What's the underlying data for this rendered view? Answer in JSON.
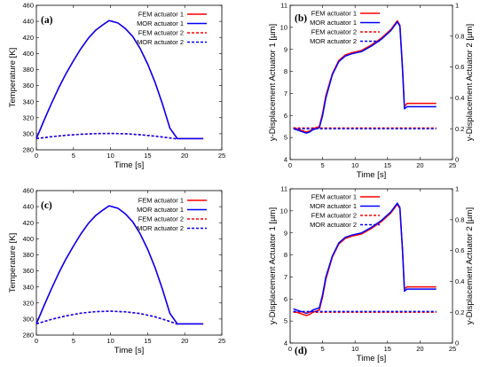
{
  "chart_data": [
    {
      "panel_label": "(a)",
      "type": "line",
      "xlabel": "Time [s]",
      "ylabel": "Temperature [K]",
      "xlim": [
        0,
        25
      ],
      "ylim": [
        280,
        460
      ],
      "xticks": [
        "0",
        "5",
        "10",
        "15",
        "20",
        "25"
      ],
      "yticks": [
        "280",
        "300",
        "320",
        "340",
        "360",
        "380",
        "400",
        "420",
        "440",
        "460"
      ],
      "legend_position": "top-right",
      "series": [
        {
          "name": "FEM actuator 1",
          "color": "#ff0000",
          "dash": "solid",
          "axis": "left",
          "x": [
            0,
            1,
            2,
            3,
            4,
            5,
            6,
            7,
            8,
            9,
            9.8,
            11,
            12,
            13,
            14,
            15,
            16,
            17,
            18,
            19,
            20,
            21,
            22.5
          ],
          "y": [
            294,
            316,
            337,
            357,
            375,
            391,
            406,
            419,
            429,
            436,
            441,
            438,
            431,
            421,
            406,
            387,
            364,
            337,
            307,
            294,
            294,
            294,
            294
          ]
        },
        {
          "name": "MOR actuator 1",
          "color": "#0000ff",
          "dash": "solid",
          "axis": "left",
          "x": [
            0,
            1,
            2,
            3,
            4,
            5,
            6,
            7,
            8,
            9,
            9.8,
            11,
            12,
            13,
            14,
            15,
            16,
            17,
            18,
            19,
            20,
            21,
            22.5
          ],
          "y": [
            294,
            316,
            337,
            357,
            375,
            391,
            406,
            419,
            429,
            436,
            441,
            438,
            431,
            421,
            406,
            387,
            364,
            337,
            307,
            294,
            294,
            294,
            294
          ]
        },
        {
          "name": "FEM actuator 2",
          "color": "#ff0000",
          "dash": "dashed",
          "axis": "left",
          "x": [
            0,
            2,
            4,
            6,
            8,
            10,
            12,
            14,
            16,
            18,
            19
          ],
          "y": [
            294,
            296.3,
            298.1,
            299.4,
            300.2,
            300.4,
            300.0,
            298.8,
            297.0,
            294.8,
            293.5
          ]
        },
        {
          "name": "MOR actuator 2",
          "color": "#0000ff",
          "dash": "dashed",
          "axis": "left",
          "x": [
            0,
            2,
            4,
            6,
            8,
            10,
            12,
            14,
            16,
            18,
            19
          ],
          "y": [
            294,
            296.3,
            298.1,
            299.4,
            300.2,
            300.4,
            300.0,
            298.8,
            297.0,
            294.8,
            293.5
          ]
        }
      ]
    },
    {
      "panel_label": "(b)",
      "type": "line",
      "xlabel": "Time [s]",
      "ylabel": "y-Displacement Actuator 1 [µm]",
      "ylabel2": "y-Displacement Actuator 2 [µm]",
      "xlim": [
        0,
        25
      ],
      "ylim": [
        4,
        11
      ],
      "ylim2": [
        0,
        1
      ],
      "xticks": [
        "0",
        "5",
        "10",
        "15",
        "20",
        "25"
      ],
      "yticks": [
        "4",
        "5",
        "6",
        "7",
        "8",
        "9",
        "10",
        "11"
      ],
      "yticks2": [
        "0",
        "0.2",
        "0.4",
        "0.6",
        "0.8",
        "1"
      ],
      "legend_position": "top-center",
      "series": [
        {
          "name": "FEM actuator 1",
          "color": "#ff0000",
          "dash": "solid",
          "axis": "left",
          "x": [
            0.5,
            1.5,
            2.5,
            3,
            3.5,
            4.5,
            5,
            5.5,
            6.5,
            7.5,
            8.5,
            9.5,
            11,
            12.5,
            14,
            15.5,
            16.5,
            16.9,
            17.3,
            17.6,
            18,
            19,
            20,
            22.5
          ],
          "y": [
            5.45,
            5.35,
            5.25,
            5.3,
            5.4,
            5.5,
            6.1,
            6.9,
            7.9,
            8.5,
            8.75,
            8.85,
            8.95,
            9.2,
            9.5,
            9.9,
            10.3,
            10.1,
            8.2,
            6.4,
            6.55,
            6.55,
            6.55,
            6.55
          ]
        },
        {
          "name": "MOR actuator 1",
          "color": "#0000ff",
          "dash": "solid",
          "axis": "left",
          "x": [
            0.5,
            1.5,
            2.5,
            3,
            3.5,
            4.5,
            5,
            5.5,
            6.5,
            7.5,
            8.5,
            9.5,
            11,
            12.5,
            14,
            15.5,
            16.5,
            16.9,
            17.3,
            17.6,
            18,
            19,
            20,
            22.5
          ],
          "y": [
            5.4,
            5.3,
            5.2,
            5.25,
            5.35,
            5.45,
            6.0,
            6.8,
            7.85,
            8.45,
            8.7,
            8.8,
            8.9,
            9.15,
            9.45,
            9.85,
            10.25,
            10.05,
            8.1,
            6.3,
            6.4,
            6.4,
            6.4,
            6.4
          ]
        },
        {
          "name": "FEM actuator 2",
          "color": "#ff0000",
          "dash": "dashed",
          "axis": "right",
          "x": [
            0.5,
            22.5
          ],
          "y": [
            0.205,
            0.205
          ]
        },
        {
          "name": "MOR actuator 2",
          "color": "#0000ff",
          "dash": "dashed",
          "axis": "right",
          "x": [
            0.5,
            22.5
          ],
          "y": [
            0.2,
            0.2
          ]
        }
      ]
    },
    {
      "panel_label": "(c)",
      "type": "line",
      "xlabel": "Time [s]",
      "ylabel": "Temperature [K]",
      "xlim": [
        0,
        25
      ],
      "ylim": [
        280,
        460
      ],
      "xticks": [
        "0",
        "5",
        "10",
        "15",
        "20",
        "25"
      ],
      "yticks": [
        "280",
        "300",
        "320",
        "340",
        "360",
        "380",
        "400",
        "420",
        "440",
        "460"
      ],
      "legend_position": "top-right",
      "series": [
        {
          "name": "FEM actuator 1",
          "color": "#ff0000",
          "dash": "solid",
          "axis": "left",
          "x": [
            0,
            1,
            2,
            3,
            4,
            5,
            6,
            7,
            8,
            9,
            9.8,
            11,
            12,
            13,
            14,
            15,
            16,
            17,
            18,
            19,
            20,
            21,
            22.5
          ],
          "y": [
            294,
            316,
            337,
            357,
            375,
            391,
            406,
            419,
            429,
            436,
            441,
            438,
            431,
            421,
            406,
            387,
            364,
            337,
            307,
            294,
            294,
            294,
            294
          ]
        },
        {
          "name": "MOR actuator 1",
          "color": "#0000ff",
          "dash": "solid",
          "axis": "left",
          "x": [
            0,
            1,
            2,
            3,
            4,
            5,
            6,
            7,
            8,
            9,
            9.8,
            11,
            12,
            13,
            14,
            15,
            16,
            17,
            18,
            19,
            20,
            21,
            22.5
          ],
          "y": [
            294,
            316,
            337,
            357,
            375,
            391,
            406,
            419,
            429,
            436,
            441,
            438,
            431,
            421,
            406,
            387,
            364,
            337,
            307,
            294,
            294,
            294,
            294
          ]
        },
        {
          "name": "FEM actuator 2",
          "color": "#ff0000",
          "dash": "dashed",
          "axis": "left",
          "x": [
            0,
            2,
            4,
            6,
            8,
            10,
            12,
            14,
            16,
            18,
            19
          ],
          "y": [
            294,
            299.5,
            304.0,
            307.3,
            309.2,
            309.8,
            309.0,
            306.8,
            302.8,
            297.0,
            293.5
          ]
        },
        {
          "name": "MOR actuator 2",
          "color": "#0000ff",
          "dash": "dashed",
          "axis": "left",
          "x": [
            0,
            2,
            4,
            6,
            8,
            10,
            12,
            14,
            16,
            18,
            19
          ],
          "y": [
            294,
            299.5,
            304.0,
            307.3,
            309.2,
            309.8,
            309.0,
            306.8,
            302.8,
            297.0,
            293.5
          ]
        }
      ]
    },
    {
      "panel_label": "(d)",
      "type": "line",
      "xlabel": "Time [s]",
      "ylabel": "y-Displacement Actuator 1 [µm]",
      "ylabel2": "y-Displacement Actuator 2 [µm]",
      "xlim": [
        0,
        25
      ],
      "ylim": [
        4,
        11
      ],
      "ylim2": [
        0,
        1
      ],
      "xticks": [
        "0",
        "5",
        "10",
        "15",
        "20",
        "25"
      ],
      "yticks": [
        "4",
        "5",
        "6",
        "7",
        "8",
        "9",
        "10",
        "11"
      ],
      "yticks2": [
        "0",
        "0.2",
        "0.4",
        "0.6",
        "0.8",
        "1"
      ],
      "legend_position": "top-center",
      "series": [
        {
          "name": "FEM actuator 1",
          "color": "#ff0000",
          "dash": "solid",
          "axis": "left",
          "x": [
            0.5,
            1.5,
            2.5,
            3,
            3.5,
            4.5,
            5,
            5.5,
            6.5,
            7.5,
            8.5,
            9.5,
            11,
            12.5,
            14,
            15.5,
            16.5,
            16.9,
            17.3,
            17.6,
            18,
            19,
            20,
            22.5
          ],
          "y": [
            5.45,
            5.35,
            5.25,
            5.3,
            5.4,
            5.5,
            6.1,
            6.9,
            7.9,
            8.5,
            8.75,
            8.85,
            8.95,
            9.2,
            9.5,
            9.9,
            10.3,
            10.1,
            8.2,
            6.45,
            6.55,
            6.55,
            6.55,
            6.55
          ]
        },
        {
          "name": "MOR actuator 1",
          "color": "#0000ff",
          "dash": "solid",
          "axis": "left",
          "x": [
            0.5,
            1.5,
            2.5,
            3,
            3.5,
            4.5,
            5,
            5.5,
            6.5,
            7.5,
            8.5,
            9.5,
            11,
            12.5,
            14,
            15.5,
            16.5,
            16.9,
            17.3,
            17.6,
            18,
            19,
            20,
            22.5
          ],
          "y": [
            5.55,
            5.45,
            5.35,
            5.4,
            5.5,
            5.6,
            6.2,
            7.0,
            7.95,
            8.55,
            8.8,
            8.9,
            9.0,
            9.25,
            9.55,
            9.95,
            10.35,
            10.15,
            8.25,
            6.35,
            6.45,
            6.45,
            6.45,
            6.45
          ]
        },
        {
          "name": "FEM actuator 2",
          "color": "#ff0000",
          "dash": "dashed",
          "axis": "right",
          "x": [
            0.5,
            22.5
          ],
          "y": [
            0.2,
            0.2
          ]
        },
        {
          "name": "MOR actuator 2",
          "color": "#0000ff",
          "dash": "dashed",
          "axis": "right",
          "x": [
            0.5,
            22.5
          ],
          "y": [
            0.205,
            0.205
          ]
        }
      ]
    }
  ]
}
